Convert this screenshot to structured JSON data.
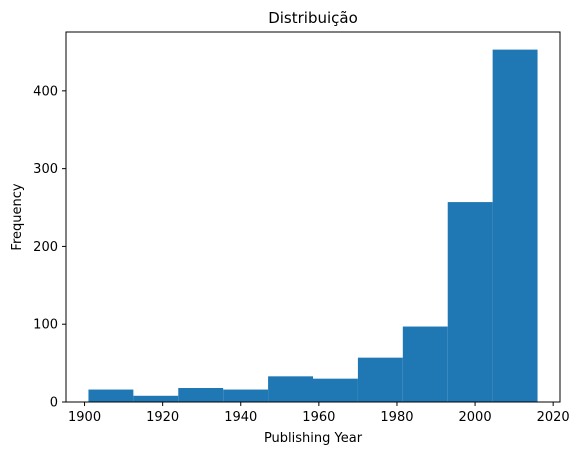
{
  "chart_data": {
    "type": "bar",
    "title": "Distribuição",
    "xlabel": "Publishing Year",
    "ylabel": "Frequency",
    "bins": [
      {
        "start": 1901.0,
        "end": 1912.5,
        "count": 16
      },
      {
        "start": 1912.5,
        "end": 1924.0,
        "count": 8
      },
      {
        "start": 1924.0,
        "end": 1935.5,
        "count": 18
      },
      {
        "start": 1935.5,
        "end": 1947.0,
        "count": 16
      },
      {
        "start": 1947.0,
        "end": 1958.5,
        "count": 33
      },
      {
        "start": 1958.5,
        "end": 1970.0,
        "count": 30
      },
      {
        "start": 1970.0,
        "end": 1981.5,
        "count": 57
      },
      {
        "start": 1981.5,
        "end": 1993.0,
        "count": 97
      },
      {
        "start": 1993.0,
        "end": 2004.5,
        "count": 257
      },
      {
        "start": 2004.5,
        "end": 2016.0,
        "count": 453
      }
    ],
    "xlim": [
      1895.25,
      2021.75
    ],
    "ylim": [
      0,
      475.65
    ],
    "xticks": [
      1900,
      1920,
      1940,
      1960,
      1980,
      2000,
      2020
    ],
    "yticks": [
      0,
      100,
      200,
      300,
      400
    ],
    "grid": false,
    "bar_color": "#1f77b4"
  }
}
